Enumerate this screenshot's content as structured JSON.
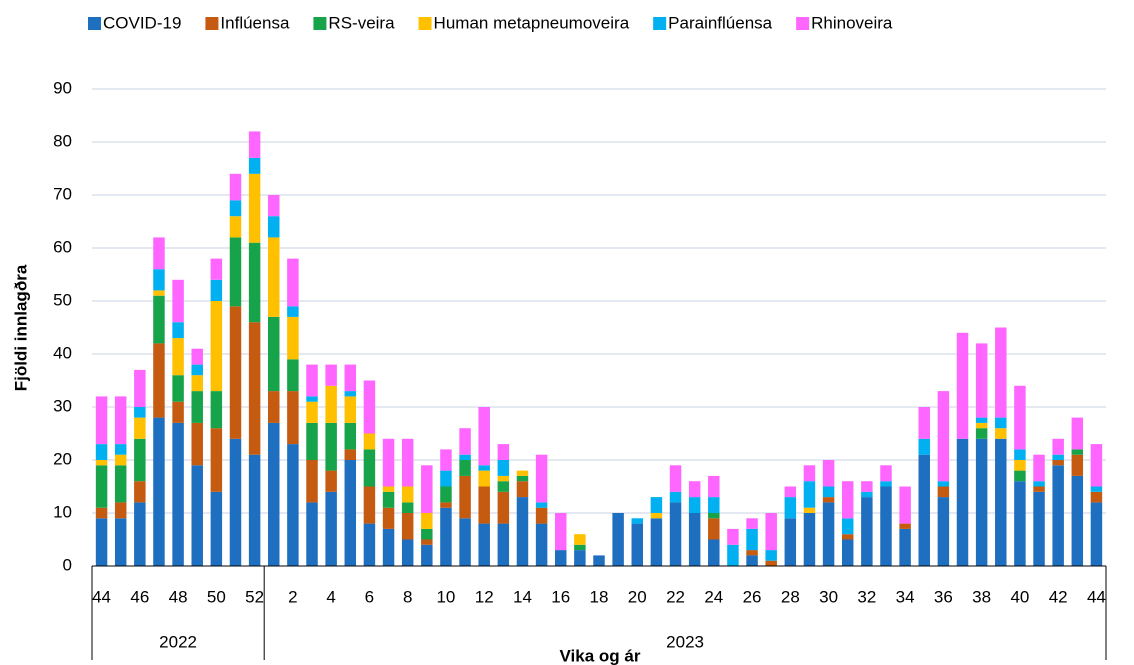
{
  "chart_data": {
    "type": "bar",
    "stacked": true,
    "x_axis_label": "Vika og ár",
    "y_axis_label": "Fjöldi innlagðra",
    "categories": [
      "44",
      null,
      "46",
      null,
      "48",
      null,
      "50",
      null,
      "52",
      null,
      "2",
      null,
      "4",
      null,
      "6",
      null,
      "8",
      null,
      "10",
      null,
      "12",
      null,
      "14",
      null,
      "16",
      null,
      "18",
      null,
      "20",
      null,
      "22",
      null,
      "24",
      null,
      "26",
      null,
      "28",
      null,
      "30",
      null,
      "32",
      null,
      "34",
      null,
      "36",
      null,
      "38",
      null,
      "40",
      null,
      "42",
      null,
      "44"
    ],
    "x_groups": [
      {
        "label": "2022",
        "span": 9
      },
      {
        "label": "2023",
        "span": 44
      }
    ],
    "ylim": [
      0,
      90
    ],
    "yticks": [
      0,
      10,
      20,
      30,
      40,
      50,
      60,
      70,
      80,
      90
    ],
    "grid": true,
    "legend": "top",
    "series": [
      {
        "name": "COVID-19",
        "color": "#1f6fc0",
        "values": [
          9,
          9,
          12,
          28,
          27,
          19,
          14,
          24,
          21,
          27,
          23,
          12,
          14,
          20,
          8,
          7,
          5,
          4,
          11,
          9,
          8,
          8,
          13,
          8,
          3,
          3,
          2,
          10,
          8,
          9,
          12,
          10,
          5,
          0,
          2,
          0,
          9,
          10,
          12,
          5,
          13,
          15,
          7,
          21,
          13,
          24,
          24,
          24,
          16,
          14,
          19,
          17,
          12
        ]
      },
      {
        "name": "Inflúensa",
        "color": "#c55a11",
        "values": [
          2,
          3,
          4,
          14,
          4,
          8,
          12,
          25,
          25,
          6,
          10,
          8,
          4,
          2,
          7,
          4,
          5,
          1,
          1,
          8,
          7,
          6,
          3,
          3,
          0,
          0,
          0,
          0,
          0,
          0,
          0,
          0,
          4,
          0,
          1,
          1,
          0,
          0,
          1,
          1,
          0,
          0,
          1,
          0,
          2,
          0,
          0,
          0,
          0,
          1,
          1,
          4,
          2
        ]
      },
      {
        "name": "RS-veira",
        "color": "#16a34a",
        "values": [
          8,
          7,
          8,
          9,
          5,
          6,
          7,
          13,
          15,
          14,
          6,
          7,
          9,
          5,
          7,
          3,
          2,
          2,
          3,
          3,
          0,
          2,
          1,
          0,
          0,
          1,
          0,
          0,
          0,
          0,
          0,
          0,
          1,
          0,
          0,
          0,
          0,
          0,
          0,
          0,
          0,
          0,
          0,
          0,
          0,
          0,
          2,
          0,
          2,
          0,
          0,
          1,
          0
        ]
      },
      {
        "name": "Human metapneumoveira",
        "color": "#ffc000",
        "values": [
          1,
          2,
          4,
          1,
          7,
          3,
          17,
          4,
          13,
          15,
          8,
          4,
          7,
          5,
          3,
          1,
          3,
          3,
          0,
          0,
          3,
          1,
          1,
          0,
          0,
          2,
          0,
          0,
          0,
          1,
          0,
          0,
          0,
          0,
          0,
          0,
          0,
          1,
          0,
          0,
          0,
          0,
          0,
          0,
          0,
          0,
          1,
          2,
          2,
          0,
          0,
          0,
          0
        ]
      },
      {
        "name": "Parainflúensa",
        "color": "#00b0f0",
        "values": [
          3,
          2,
          2,
          4,
          3,
          2,
          4,
          3,
          3,
          4,
          2,
          1,
          0,
          1,
          0,
          0,
          0,
          0,
          3,
          1,
          1,
          3,
          0,
          1,
          0,
          0,
          0,
          0,
          1,
          3,
          2,
          3,
          3,
          4,
          4,
          2,
          4,
          5,
          2,
          3,
          1,
          1,
          0,
          3,
          1,
          0,
          1,
          2,
          2,
          1,
          1,
          0,
          1
        ]
      },
      {
        "name": "Rhinoveira",
        "color": "#ff66ff",
        "values": [
          9,
          9,
          7,
          6,
          8,
          3,
          4,
          5,
          5,
          4,
          9,
          6,
          4,
          5,
          10,
          9,
          9,
          9,
          4,
          5,
          11,
          3,
          0,
          9,
          7,
          0,
          0,
          0,
          0,
          0,
          5,
          3,
          4,
          3,
          2,
          7,
          2,
          3,
          5,
          7,
          2,
          3,
          7,
          6,
          17,
          20,
          14,
          17,
          12,
          5,
          3,
          6,
          8
        ]
      }
    ]
  }
}
